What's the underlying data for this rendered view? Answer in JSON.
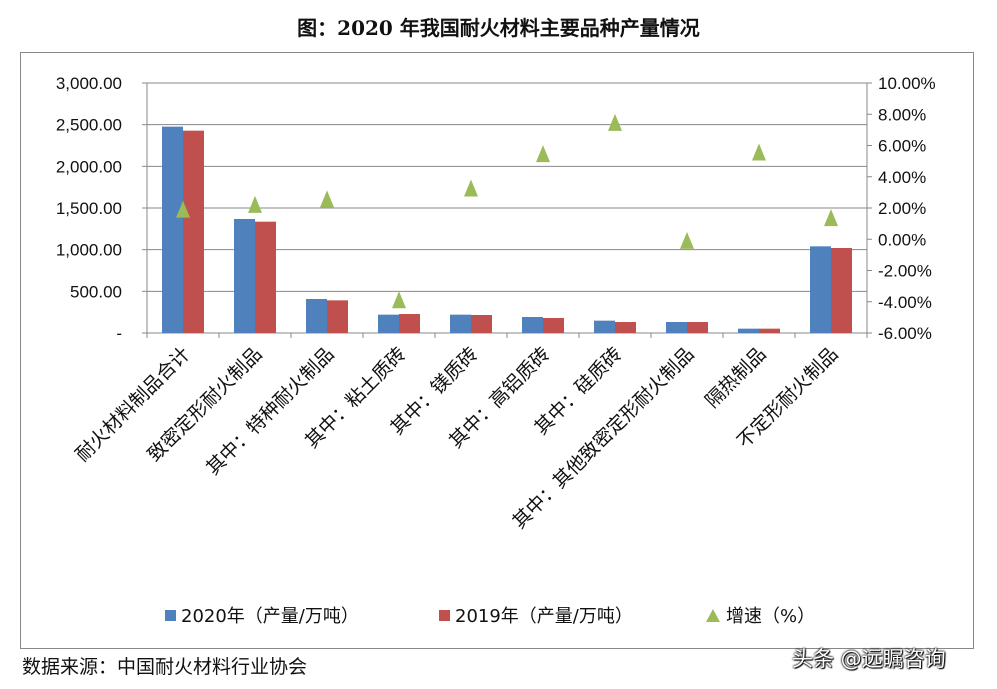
{
  "chart_data": {
    "type": "bar",
    "title": "图：2020 年我国耐火材料主要品种产量情况",
    "categories": [
      "耐火材料制品合计",
      "致密定形耐火制品",
      "其中：特种耐火制品",
      "其中：粘土质砖",
      "其中：镁质砖",
      "其中：高铝质砖",
      "其中：硅质砖",
      "其中：其他致密定形耐火制品",
      "隔热制品",
      "不定形耐火制品"
    ],
    "series": [
      {
        "name": "2020年（产量/万吨）",
        "type": "bar",
        "axis": "left",
        "color": "#4f81bd",
        "values": [
          2476,
          1368,
          408,
          220,
          220,
          192,
          148,
          132,
          52,
          1040
        ]
      },
      {
        "name": "2019年（产量/万吨）",
        "type": "bar",
        "axis": "left",
        "color": "#c0504d",
        "values": [
          2428,
          1336,
          392,
          228,
          216,
          180,
          132,
          132,
          52,
          1020
        ]
      },
      {
        "name": "增速（%）",
        "type": "scatter",
        "marker": "triangle",
        "axis": "right",
        "color": "#9bbb59",
        "values": [
          1.9,
          2.2,
          2.55,
          -3.9,
          3.25,
          5.45,
          7.45,
          -0.1,
          5.55,
          1.35
        ]
      }
    ],
    "ylim": [
      0,
      3000
    ],
    "yticks": [
      "-",
      "500.00",
      "1,000.00",
      "1,500.00",
      "2,000.00",
      "2,500.00",
      "3,000.00"
    ],
    "y2lim": [
      -6,
      10
    ],
    "y2ticks": [
      "-6.00%",
      "-4.00%",
      "-2.00%",
      "0.00%",
      "2.00%",
      "4.00%",
      "6.00%",
      "8.00%",
      "10.00%"
    ],
    "grid": true,
    "legend_position": "bottom"
  },
  "source": "数据来源：中国耐火材料行业协会",
  "watermark": "头条 @远瞩咨询"
}
